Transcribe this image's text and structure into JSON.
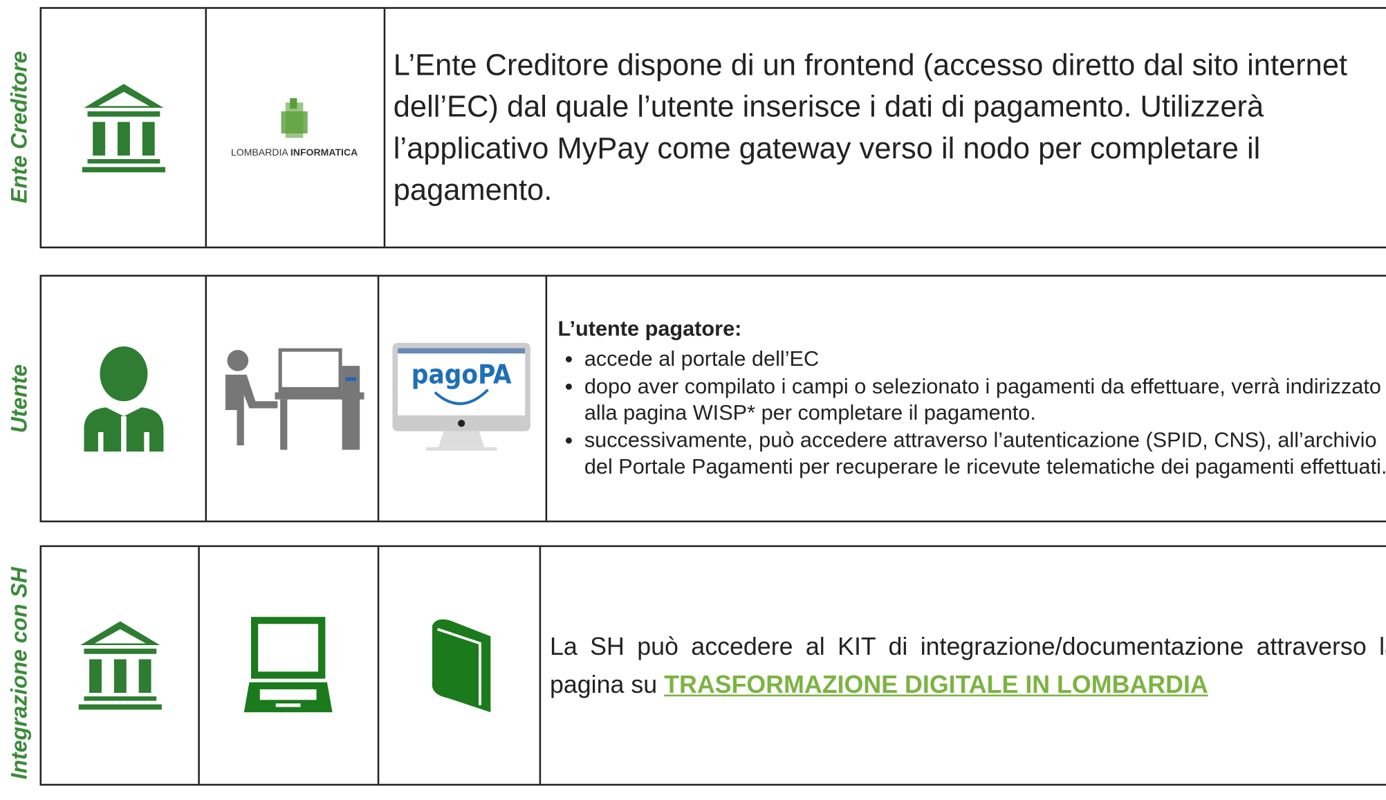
{
  "rows": [
    {
      "label": "Ente Creditore",
      "logo": {
        "light": "LOMBARDIA",
        "bold": "INFORMATICA"
      },
      "text": "L’Ente Creditore dispone di un frontend (accesso diretto dal sito internet dell’EC) dal quale l’utente inserisce i dati di pagamento. Utilizzerà l’applicativo MyPay come gateway verso il nodo per completare il pagamento."
    },
    {
      "label": "Utente",
      "icon_text": "pagoPA",
      "heading": "L’utente pagatore:",
      "bullets": [
        "accede al portale dell’EC",
        "dopo aver compilato i campi o selezionato i pagamenti da effettuare, verrà indirizzato alla pagina WISP* per completare il pagamento.",
        "successivamente, può accedere attraverso l’autenticazione (SPID, CNS), all’archivio del Portale Pagamenti per recuperare le ricevute telematiche dei pagamenti effettuati."
      ]
    },
    {
      "label": "Integrazione con SH",
      "text": "La SH può accedere al KIT di integrazione/documentazione attraverso la pagina su",
      "link": "TRASFORMAZIONE DIGITALE IN LOMBARDIA"
    }
  ]
}
